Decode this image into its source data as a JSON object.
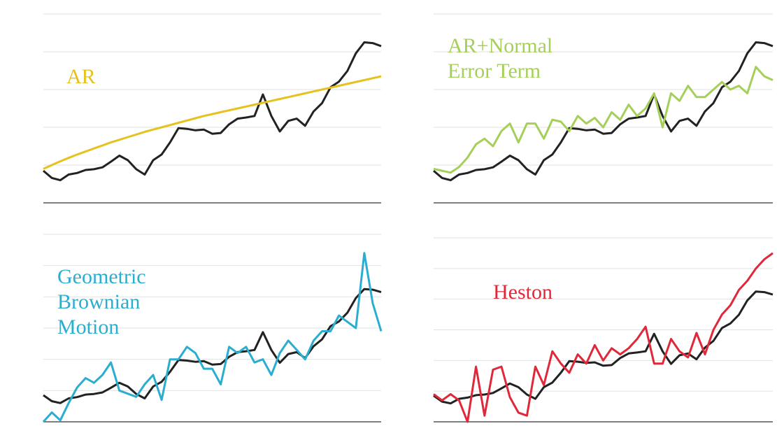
{
  "chart_data": [
    {
      "type": "line",
      "ylim": [
        0,
        5
      ],
      "yticks": [
        0,
        1,
        2,
        3,
        4,
        5
      ],
      "grid": true,
      "series": [
        {
          "color": "#222222",
          "values": [
            0.85,
            0.66,
            0.6,
            0.75,
            0.79,
            0.87,
            0.89,
            0.94,
            1.09,
            1.25,
            1.13,
            0.89,
            0.75,
            1.13,
            1.28,
            1.6,
            1.98,
            1.96,
            1.92,
            1.94,
            1.83,
            1.85,
            2.08,
            2.23,
            2.26,
            2.3,
            2.87,
            2.3,
            1.89,
            2.17,
            2.23,
            2.04,
            2.42,
            2.64,
            3.06,
            3.21,
            3.49,
            3.96,
            4.25,
            4.23,
            4.15
          ]
        },
        {
          "name": "AR",
          "color": "#e6c21e",
          "values": [
            0.9,
            1.0,
            1.1,
            1.19,
            1.28,
            1.36,
            1.44,
            1.52,
            1.6,
            1.67,
            1.74,
            1.81,
            1.88,
            1.94,
            2.0,
            2.06,
            2.12,
            2.18,
            2.24,
            2.3,
            2.35,
            2.4,
            2.45,
            2.5,
            2.55,
            2.6,
            2.65,
            2.7,
            2.75,
            2.8,
            2.85,
            2.9,
            2.95,
            3.0,
            3.05,
            3.1,
            3.15,
            3.2,
            3.25,
            3.3,
            3.35
          ]
        }
      ]
    },
    {
      "type": "line",
      "ylim": [
        0,
        5
      ],
      "yticks": [
        0,
        1,
        2,
        3,
        4,
        5
      ],
      "grid": true,
      "series": [
        {
          "color": "#222222",
          "values": [
            0.85,
            0.66,
            0.6,
            0.75,
            0.79,
            0.87,
            0.89,
            0.94,
            1.09,
            1.25,
            1.13,
            0.89,
            0.75,
            1.13,
            1.28,
            1.6,
            1.98,
            1.96,
            1.92,
            1.94,
            1.83,
            1.85,
            2.08,
            2.23,
            2.26,
            2.3,
            2.87,
            2.3,
            1.89,
            2.17,
            2.23,
            2.04,
            2.42,
            2.64,
            3.06,
            3.21,
            3.49,
            3.96,
            4.25,
            4.23,
            4.15
          ]
        },
        {
          "name": "AR+Normal Error Term",
          "color": "#a6cf5a",
          "values": [
            0.9,
            0.85,
            0.8,
            0.95,
            1.2,
            1.55,
            1.7,
            1.5,
            1.9,
            2.1,
            1.6,
            2.1,
            2.1,
            1.7,
            2.2,
            2.15,
            1.9,
            2.3,
            2.1,
            2.25,
            2.0,
            2.4,
            2.2,
            2.6,
            2.3,
            2.5,
            2.9,
            2.0,
            2.9,
            2.7,
            3.1,
            2.8,
            2.8,
            3.0,
            3.2,
            3.0,
            3.1,
            2.9,
            3.6,
            3.35,
            3.25
          ]
        }
      ]
    },
    {
      "type": "line",
      "ylim": [
        0,
        6
      ],
      "yticks": [
        0,
        1,
        2,
        3,
        4,
        5,
        6
      ],
      "grid": true,
      "series": [
        {
          "color": "#222222",
          "values": [
            0.85,
            0.66,
            0.6,
            0.75,
            0.79,
            0.87,
            0.89,
            0.94,
            1.09,
            1.25,
            1.13,
            0.89,
            0.75,
            1.13,
            1.28,
            1.6,
            1.98,
            1.96,
            1.92,
            1.94,
            1.83,
            1.85,
            2.08,
            2.23,
            2.26,
            2.3,
            2.87,
            2.3,
            1.89,
            2.17,
            2.23,
            2.04,
            2.42,
            2.64,
            3.06,
            3.21,
            3.49,
            3.96,
            4.25,
            4.23,
            4.15
          ]
        },
        {
          "name": "Geometric Brownian Motion",
          "color": "#2aaed0",
          "values": [
            0,
            0.3,
            0.05,
            0.6,
            1.1,
            1.4,
            1.25,
            1.5,
            1.9,
            1.0,
            0.9,
            0.8,
            1.2,
            1.5,
            0.7,
            2.0,
            2.0,
            2.4,
            2.2,
            1.7,
            1.7,
            1.2,
            2.4,
            2.2,
            2.4,
            1.9,
            2.0,
            1.5,
            2.2,
            2.6,
            2.3,
            2.0,
            2.6,
            2.9,
            2.9,
            3.4,
            3.2,
            3.0,
            5.4,
            3.8,
            2.9
          ]
        }
      ]
    },
    {
      "type": "line",
      "ylim": [
        0,
        6
      ],
      "yticks": [
        0,
        1,
        2,
        3,
        4,
        5,
        6
      ],
      "grid": true,
      "series": [
        {
          "color": "#222222",
          "values": [
            0.85,
            0.66,
            0.6,
            0.75,
            0.79,
            0.87,
            0.89,
            0.94,
            1.09,
            1.25,
            1.13,
            0.89,
            0.75,
            1.13,
            1.28,
            1.6,
            1.98,
            1.96,
            1.92,
            1.94,
            1.83,
            1.85,
            2.08,
            2.23,
            2.26,
            2.3,
            2.87,
            2.3,
            1.89,
            2.17,
            2.23,
            2.04,
            2.42,
            2.64,
            3.06,
            3.21,
            3.49,
            3.96,
            4.25,
            4.23,
            4.15
          ]
        },
        {
          "name": "Heston",
          "color": "#e0283a",
          "values": [
            0.9,
            0.7,
            0.9,
            0.7,
            0,
            1.8,
            0.2,
            1.7,
            1.8,
            0.8,
            0.3,
            0.2,
            1.8,
            1.2,
            2.3,
            1.9,
            1.6,
            2.2,
            1.9,
            2.5,
            2.0,
            2.4,
            2.2,
            2.4,
            2.7,
            3.1,
            1.9,
            1.9,
            2.7,
            2.3,
            2.1,
            2.9,
            2.2,
            3.0,
            3.5,
            3.8,
            4.3,
            4.6,
            5.0,
            5.3,
            5.5
          ]
        }
      ]
    }
  ]
}
